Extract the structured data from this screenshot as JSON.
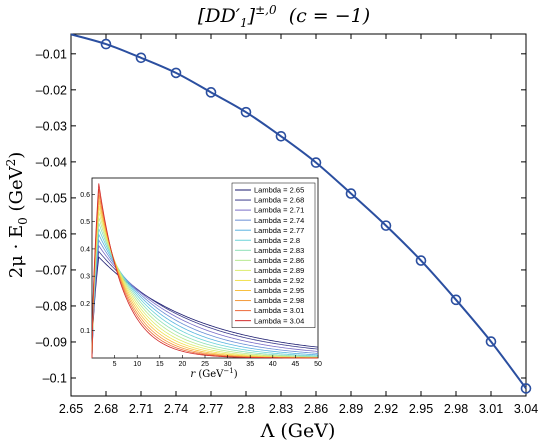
{
  "chart_data": [
    {
      "type": "line",
      "title": "[DD′₁]^{±,0} (c = −1)",
      "title_parts": {
        "main": "[DD′",
        "sub": "1",
        "close": "]",
        "sup": "±,0",
        "suffix": "  (c = −1)"
      },
      "xlabel": "Λ (GeV)",
      "ylabel_parts": {
        "prefix": "2μ · E",
        "sub": "0",
        "unit": " (GeV",
        "sup": "2",
        "close": ")"
      },
      "xlim": [
        2.65,
        3.04
      ],
      "ylim": [
        -0.105,
        -0.0045
      ],
      "xticks": [
        2.65,
        2.68,
        2.71,
        2.74,
        2.77,
        2.8,
        2.83,
        2.86,
        2.89,
        2.92,
        2.95,
        2.98,
        3.01,
        3.04
      ],
      "xtick_labels": [
        "2.65",
        "2.68",
        "2.71",
        "2.74",
        "2.77",
        "2.8",
        "2.83",
        "2.86",
        "2.89",
        "2.92",
        "2.95",
        "2.98",
        "3.01",
        "3.04"
      ],
      "yticks": [
        -0.01,
        -0.02,
        -0.03,
        -0.04,
        -0.05,
        -0.06,
        -0.07,
        -0.08,
        -0.09,
        -0.1
      ],
      "ytick_labels": [
        "–0.01",
        "–0.02",
        "–0.03",
        "–0.04",
        "–0.05",
        "–0.06",
        "–0.07",
        "–0.08",
        "–0.09",
        "–0.1"
      ],
      "grid": false,
      "line_color": "#2b4fa0",
      "series": [
        {
          "x": [
            2.65,
            2.68,
            2.71,
            2.74,
            2.77,
            2.8,
            2.83,
            2.86,
            2.89,
            2.92,
            2.95,
            2.98,
            3.01,
            3.04
          ],
          "y": [
            -0.0046,
            -0.0073,
            -0.0111,
            -0.0153,
            -0.0207,
            -0.0262,
            -0.0329,
            -0.0402,
            -0.0488,
            -0.0577,
            -0.0674,
            -0.0783,
            -0.0899,
            -0.1029
          ],
          "markers": [
            false,
            true,
            true,
            true,
            true,
            true,
            true,
            true,
            true,
            true,
            true,
            true,
            true,
            true
          ]
        }
      ]
    },
    {
      "type": "line",
      "inset": true,
      "xlabel_parts": {
        "prefix": "r",
        "unit": " (GeV",
        "sup": "−1",
        "close": ")"
      },
      "xlim": [
        0,
        50
      ],
      "ylim": [
        0,
        0.66
      ],
      "xticks": [
        5,
        10,
        15,
        20,
        25,
        30,
        35,
        40,
        45,
        50
      ],
      "xtick_labels": [
        "5",
        "10",
        "15",
        "20",
        "25",
        "30",
        "35",
        "40",
        "45",
        "50"
      ],
      "yticks": [
        0.1,
        0.2,
        0.3,
        0.4,
        0.5,
        0.6
      ],
      "ytick_labels": [
        "0.1",
        "0.2",
        "0.3",
        "0.4",
        "0.5",
        "0.6"
      ],
      "legend": "top-right",
      "series": [
        {
          "name": "Lambda = 2.65",
          "lambda": 2.65,
          "color": "#1a1a6e"
        },
        {
          "name": "Lambda = 2.68",
          "lambda": 2.68,
          "color": "#3c3c8c"
        },
        {
          "name": "Lambda = 2.71",
          "lambda": 2.71,
          "color": "#7a6fc8"
        },
        {
          "name": "Lambda = 2.74",
          "lambda": 2.74,
          "color": "#6a8fd6"
        },
        {
          "name": "Lambda = 2.77",
          "lambda": 2.77,
          "color": "#5ab4e0"
        },
        {
          "name": "Lambda = 2.8",
          "lambda": 2.8,
          "color": "#6ad2d8"
        },
        {
          "name": "Lambda = 2.83",
          "lambda": 2.83,
          "color": "#8ee0b8"
        },
        {
          "name": "Lambda = 2.86",
          "lambda": 2.86,
          "color": "#b8e890"
        },
        {
          "name": "Lambda = 2.89",
          "lambda": 2.89,
          "color": "#dcec70"
        },
        {
          "name": "Lambda = 2.92",
          "lambda": 2.92,
          "color": "#f2e050"
        },
        {
          "name": "Lambda = 2.95",
          "lambda": 2.95,
          "color": "#f8c040"
        },
        {
          "name": "Lambda = 2.98",
          "lambda": 2.98,
          "color": "#f49a3a"
        },
        {
          "name": "Lambda = 3.01",
          "lambda": 3.01,
          "color": "#ec6a3a"
        },
        {
          "name": "Lambda = 3.04",
          "lambda": 3.04,
          "color": "#d22a2a"
        }
      ]
    }
  ]
}
